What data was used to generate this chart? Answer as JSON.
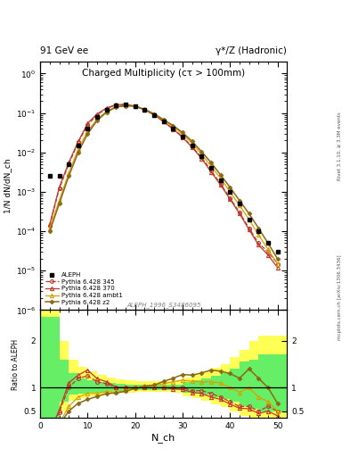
{
  "title_top_left": "91 GeV ee",
  "title_top_right": "γ*/Z (Hadronic)",
  "title_main": "Charged Multiplicity",
  "title_sub": "(cτ > 100mm)",
  "ylabel_main": "1/N dN/dN_ch",
  "ylabel_ratio": "Ratio to ALEPH",
  "xlabel": "N_ch",
  "watermark": "ALEPH_1996_S3486095",
  "right_label_top": "Rivet 3.1.10, ≥ 3.3M events",
  "right_label_bot": "mcplots.cern.ch [arXiv:1306.3436]",
  "aleph_x": [
    2,
    4,
    6,
    8,
    10,
    12,
    14,
    16,
    18,
    20,
    22,
    24,
    26,
    28,
    30,
    32,
    34,
    36,
    38,
    40,
    42,
    44,
    46,
    48,
    50
  ],
  "aleph_y": [
    0.0025,
    0.0025,
    0.005,
    0.015,
    0.04,
    0.08,
    0.12,
    0.16,
    0.165,
    0.15,
    0.12,
    0.09,
    0.06,
    0.04,
    0.025,
    0.015,
    0.008,
    0.004,
    0.002,
    0.001,
    0.0005,
    0.0002,
    0.0001,
    5e-05,
    3e-05
  ],
  "p345_x": [
    2,
    4,
    6,
    8,
    10,
    12,
    14,
    16,
    18,
    20,
    22,
    24,
    26,
    28,
    30,
    32,
    34,
    36,
    38,
    40,
    42,
    44,
    46,
    48,
    50
  ],
  "p345_y": [
    0.00014,
    0.0012,
    0.005,
    0.018,
    0.05,
    0.09,
    0.13,
    0.16,
    0.165,
    0.15,
    0.12,
    0.09,
    0.06,
    0.04,
    0.025,
    0.014,
    0.0075,
    0.0035,
    0.0016,
    0.0007,
    0.0003,
    0.00012,
    5e-05,
    3e-05,
    1.5e-05
  ],
  "p370_x": [
    2,
    4,
    6,
    8,
    10,
    12,
    14,
    16,
    18,
    20,
    22,
    24,
    26,
    28,
    30,
    32,
    34,
    36,
    38,
    40,
    42,
    44,
    46,
    48,
    50
  ],
  "p370_y": [
    0.00015,
    0.0013,
    0.0055,
    0.019,
    0.055,
    0.095,
    0.135,
    0.162,
    0.165,
    0.15,
    0.12,
    0.09,
    0.06,
    0.039,
    0.024,
    0.0135,
    0.007,
    0.0032,
    0.0015,
    0.00065,
    0.00028,
    0.00011,
    4.5e-05,
    2.5e-05,
    1.2e-05
  ],
  "pambt1_x": [
    2,
    4,
    6,
    8,
    10,
    12,
    14,
    16,
    18,
    20,
    22,
    24,
    26,
    28,
    30,
    32,
    34,
    36,
    38,
    40,
    42,
    44,
    46,
    48,
    50
  ],
  "pambt1_y": [
    0.00012,
    0.0006,
    0.003,
    0.012,
    0.035,
    0.07,
    0.11,
    0.145,
    0.155,
    0.15,
    0.125,
    0.095,
    0.065,
    0.045,
    0.029,
    0.017,
    0.009,
    0.0045,
    0.0022,
    0.001,
    0.00045,
    0.0002,
    8e-05,
    3.5e-05,
    1.5e-05
  ],
  "pz2_x": [
    2,
    4,
    6,
    8,
    10,
    12,
    14,
    16,
    18,
    20,
    22,
    24,
    26,
    28,
    30,
    32,
    34,
    36,
    38,
    40,
    42,
    44,
    46,
    48,
    50
  ],
  "pz2_y": [
    0.0001,
    0.0005,
    0.0025,
    0.01,
    0.03,
    0.065,
    0.105,
    0.142,
    0.152,
    0.148,
    0.123,
    0.095,
    0.068,
    0.048,
    0.032,
    0.019,
    0.0105,
    0.0055,
    0.0027,
    0.0013,
    0.0006,
    0.00028,
    0.00012,
    5e-05,
    2e-05
  ],
  "ratio_x": [
    2,
    4,
    6,
    8,
    10,
    12,
    14,
    16,
    18,
    20,
    22,
    24,
    26,
    28,
    30,
    32,
    34,
    36,
    38,
    40,
    42,
    44,
    46,
    48,
    50
  ],
  "r345": [
    0.056,
    0.48,
    1.0,
    1.2,
    1.25,
    1.125,
    1.083,
    1.0,
    1.0,
    1.0,
    1.0,
    1.0,
    1.0,
    1.0,
    1.0,
    0.933,
    0.9375,
    0.875,
    0.8,
    0.7,
    0.6,
    0.6,
    0.5,
    0.6,
    0.5
  ],
  "r370": [
    0.06,
    0.52,
    1.1,
    1.267,
    1.375,
    1.1875,
    1.125,
    1.0125,
    1.0,
    1.0,
    1.0,
    1.0,
    1.0,
    0.975,
    0.96,
    0.9,
    0.875,
    0.8,
    0.75,
    0.65,
    0.56,
    0.55,
    0.45,
    0.5,
    0.4
  ],
  "rambt1": [
    0.048,
    0.24,
    0.6,
    0.8,
    0.875,
    0.875,
    0.917,
    0.906,
    0.939,
    1.0,
    1.042,
    1.056,
    1.083,
    1.125,
    1.16,
    1.133,
    1.125,
    1.125,
    1.1,
    1.0,
    0.9,
    1.0,
    0.8,
    0.7,
    0.5
  ],
  "rz2": [
    0.04,
    0.2,
    0.5,
    0.667,
    0.75,
    0.8125,
    0.875,
    0.8875,
    0.921,
    0.987,
    1.025,
    1.056,
    1.133,
    1.2,
    1.28,
    1.267,
    1.3125,
    1.375,
    1.35,
    1.3,
    1.2,
    1.4,
    1.2,
    1.0,
    0.667
  ],
  "green_band_x": [
    0,
    2,
    4,
    6,
    8,
    10,
    12,
    14,
    16,
    18,
    20,
    22,
    24,
    26,
    28,
    30,
    32,
    34,
    36,
    38,
    40,
    42,
    44,
    46,
    52
  ],
  "green_band_lo": [
    0.3,
    0.3,
    0.7,
    0.85,
    0.88,
    0.9,
    0.9,
    0.92,
    0.93,
    0.94,
    0.95,
    0.95,
    0.95,
    0.95,
    0.95,
    0.9,
    0.88,
    0.85,
    0.8,
    0.75,
    0.7,
    0.6,
    0.55,
    0.5,
    0.5
  ],
  "green_band_hi": [
    2.5,
    2.5,
    1.6,
    1.3,
    1.2,
    1.15,
    1.12,
    1.1,
    1.08,
    1.07,
    1.06,
    1.06,
    1.06,
    1.06,
    1.06,
    1.12,
    1.15,
    1.2,
    1.25,
    1.3,
    1.4,
    1.55,
    1.6,
    1.7,
    1.7
  ],
  "yellow_band_x": [
    0,
    2,
    4,
    6,
    8,
    10,
    12,
    14,
    16,
    18,
    20,
    22,
    24,
    26,
    28,
    30,
    32,
    34,
    36,
    38,
    40,
    42,
    44,
    46,
    52
  ],
  "yellow_band_lo": [
    0.2,
    0.2,
    0.5,
    0.72,
    0.78,
    0.82,
    0.84,
    0.87,
    0.89,
    0.9,
    0.91,
    0.91,
    0.91,
    0.91,
    0.9,
    0.82,
    0.78,
    0.72,
    0.65,
    0.58,
    0.5,
    0.4,
    0.35,
    0.3,
    0.3
  ],
  "yellow_band_hi": [
    2.8,
    2.8,
    2.0,
    1.6,
    1.45,
    1.35,
    1.28,
    1.22,
    1.18,
    1.15,
    1.13,
    1.13,
    1.13,
    1.13,
    1.14,
    1.22,
    1.28,
    1.35,
    1.42,
    1.5,
    1.65,
    1.8,
    2.0,
    2.1,
    2.1
  ],
  "color_aleph": "#000000",
  "color_p345": "#c0392b",
  "color_p370": "#c0392b",
  "color_pambt1": "#daa000",
  "color_pz2": "#8B6914",
  "ylim_main": [
    1e-06,
    2.0
  ],
  "ylim_ratio": [
    0.35,
    2.65
  ],
  "xlim": [
    0,
    52
  ]
}
